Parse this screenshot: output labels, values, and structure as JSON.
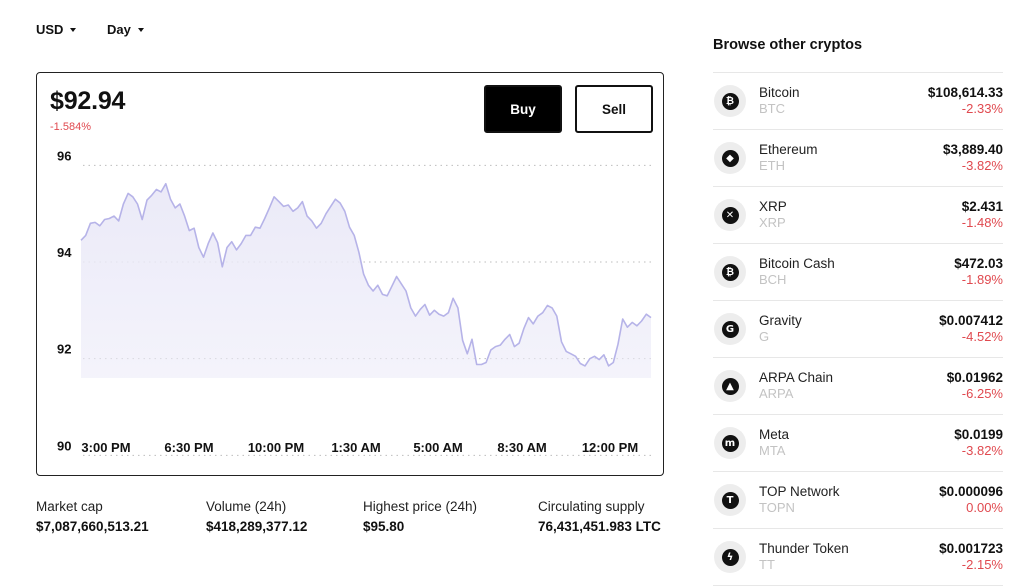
{
  "currency": "USD",
  "period": "Day",
  "asset": {
    "price": "$92.94",
    "change": "-1.584%",
    "buy_label": "Buy",
    "sell_label": "Sell"
  },
  "chart_data": {
    "type": "area",
    "title": "",
    "xlabel": "",
    "ylabel": "",
    "ylim": [
      89.8,
      96.4
    ],
    "y_ticks": [
      96,
      94,
      92,
      90
    ],
    "x_tick_labels": [
      "3:00 PM",
      "6:30 PM",
      "10:00 PM",
      "1:30 AM",
      "5:00 AM",
      "8:30 AM",
      "12:00 PM"
    ],
    "grid": "horizontal-dotted",
    "line_color": "#b6b3e8",
    "fill_color": "#ebeaf8",
    "series": [
      {
        "values": [
          94.45,
          94.55,
          94.8,
          94.82,
          94.75,
          94.88,
          94.9,
          94.95,
          94.85,
          95.2,
          95.42,
          95.35,
          95.2,
          94.88,
          95.28,
          95.38,
          95.5,
          95.45,
          95.62,
          95.3,
          95.12,
          95.2,
          94.95,
          94.65,
          94.7,
          94.3,
          94.1,
          94.38,
          94.6,
          94.4,
          93.9,
          94.3,
          94.42,
          94.25,
          94.38,
          94.55,
          94.55,
          94.72,
          94.7,
          94.9,
          95.12,
          95.35,
          95.25,
          95.15,
          95.18,
          95.05,
          95.12,
          95.25,
          94.95,
          94.85,
          94.7,
          94.8,
          95.0,
          95.15,
          95.3,
          95.22,
          95.05,
          94.72,
          94.55,
          94.2,
          93.75,
          93.52,
          93.4,
          93.52,
          93.33,
          93.3,
          93.5,
          93.7,
          93.55,
          93.4,
          93.05,
          92.88,
          93.02,
          93.12,
          92.9,
          93.0,
          92.92,
          92.88,
          92.95,
          93.25,
          93.05,
          92.38,
          92.1,
          92.4,
          91.88,
          91.88,
          91.92,
          92.18,
          92.25,
          92.28,
          92.4,
          92.5,
          92.25,
          92.32,
          92.62,
          92.85,
          92.72,
          92.88,
          92.95,
          93.1,
          93.05,
          92.88,
          92.35,
          92.15,
          92.1,
          92.05,
          91.9,
          91.85,
          92.0,
          92.05,
          91.98,
          92.08,
          91.85,
          91.92,
          92.3,
          92.82,
          92.65,
          92.75,
          92.68,
          92.78,
          92.92,
          92.85
        ]
      }
    ]
  },
  "stats": [
    {
      "label": "Market cap",
      "value": "$7,087,660,513.21"
    },
    {
      "label": "Volume (24h)",
      "value": "$418,289,377.12"
    },
    {
      "label": "Highest price (24h)",
      "value": "$95.80"
    },
    {
      "label": "Circulating supply",
      "value": "76,431,451.983 LTC"
    }
  ],
  "sidebar": {
    "title": "Browse other cryptos",
    "items": [
      {
        "name": "Bitcoin",
        "symbol": "BTC",
        "price": "$108,614.33",
        "change": "-2.33%",
        "icon": "bitcoin-icon",
        "glyph": "₿"
      },
      {
        "name": "Ethereum",
        "symbol": "ETH",
        "price": "$3,889.40",
        "change": "-3.82%",
        "icon": "ethereum-icon",
        "glyph": "◆"
      },
      {
        "name": "XRP",
        "symbol": "XRP",
        "price": "$2.431",
        "change": "-1.48%",
        "icon": "xrp-icon",
        "glyph": "✕"
      },
      {
        "name": "Bitcoin Cash",
        "symbol": "BCH",
        "price": "$472.03",
        "change": "-1.89%",
        "icon": "bitcoin-cash-icon",
        "glyph": "₿"
      },
      {
        "name": "Gravity",
        "symbol": "G",
        "price": "$0.007412",
        "change": "-4.52%",
        "icon": "gravity-icon",
        "glyph": "G"
      },
      {
        "name": "ARPA Chain",
        "symbol": "ARPA",
        "price": "$0.01962",
        "change": "-6.25%",
        "icon": "arpa-icon",
        "glyph": "▲"
      },
      {
        "name": "Meta",
        "symbol": "MTA",
        "price": "$0.0199",
        "change": "-3.82%",
        "icon": "meta-icon",
        "glyph": "m"
      },
      {
        "name": "TOP Network",
        "symbol": "TOPN",
        "price": "$0.000096",
        "change": "0.00%",
        "icon": "top-network-icon",
        "glyph": "T"
      },
      {
        "name": "Thunder Token",
        "symbol": "TT",
        "price": "$0.001723",
        "change": "-2.15%",
        "icon": "thunder-token-icon",
        "glyph": "ϟ"
      }
    ]
  }
}
